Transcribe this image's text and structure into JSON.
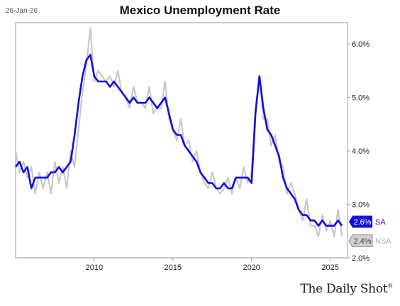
{
  "header": {
    "date": "26-Jan-26"
  },
  "brand": {
    "name": "The Daily Shot",
    "mark": "®"
  },
  "chart_data": {
    "type": "line",
    "title": "Mexico Unemployment Rate",
    "xlabel": "",
    "ylabel": "",
    "xlim": [
      2005.0,
      2026.1
    ],
    "ylim": [
      2.0,
      6.4
    ],
    "x_ticks": [
      {
        "value": 2010,
        "label": "2010"
      },
      {
        "value": 2015,
        "label": "2015"
      },
      {
        "value": 2020,
        "label": "2020"
      },
      {
        "value": 2025,
        "label": "2025"
      }
    ],
    "y_ticks": [
      {
        "value": 2.0,
        "label": "2.0%"
      },
      {
        "value": 3.0,
        "label": "3.0%"
      },
      {
        "value": 4.0,
        "label": "4.0%"
      },
      {
        "value": 5.0,
        "label": "5.0%"
      },
      {
        "value": 6.0,
        "label": "6.0%"
      }
    ],
    "grid": false,
    "series": [
      {
        "name": "NSA",
        "color": "#c8c8c8",
        "end_label": "2.4%",
        "points": [
          [
            2005.0,
            4.0
          ],
          [
            2005.25,
            3.6
          ],
          [
            2005.5,
            3.8
          ],
          [
            2005.75,
            3.5
          ],
          [
            2006.0,
            3.7
          ],
          [
            2006.25,
            3.2
          ],
          [
            2006.5,
            3.6
          ],
          [
            2006.75,
            3.3
          ],
          [
            2007.0,
            3.6
          ],
          [
            2007.25,
            3.2
          ],
          [
            2007.5,
            3.8
          ],
          [
            2007.75,
            3.4
          ],
          [
            2008.0,
            3.7
          ],
          [
            2008.25,
            3.3
          ],
          [
            2008.5,
            4.0
          ],
          [
            2008.75,
            3.7
          ],
          [
            2009.0,
            4.4
          ],
          [
            2009.25,
            5.1
          ],
          [
            2009.5,
            5.6
          ],
          [
            2009.75,
            6.3
          ],
          [
            2010.0,
            5.3
          ],
          [
            2010.25,
            5.5
          ],
          [
            2010.5,
            5.4
          ],
          [
            2010.75,
            5.3
          ],
          [
            2011.0,
            5.4
          ],
          [
            2011.25,
            5.2
          ],
          [
            2011.5,
            5.5
          ],
          [
            2011.75,
            5.1
          ],
          [
            2012.0,
            5.0
          ],
          [
            2012.25,
            4.8
          ],
          [
            2012.5,
            5.2
          ],
          [
            2012.75,
            4.9
          ],
          [
            2013.0,
            4.9
          ],
          [
            2013.25,
            4.8
          ],
          [
            2013.5,
            5.2
          ],
          [
            2013.75,
            4.7
          ],
          [
            2014.0,
            4.8
          ],
          [
            2014.25,
            4.8
          ],
          [
            2014.5,
            5.3
          ],
          [
            2014.75,
            4.6
          ],
          [
            2015.0,
            4.4
          ],
          [
            2015.25,
            4.2
          ],
          [
            2015.5,
            4.6
          ],
          [
            2015.75,
            4.1
          ],
          [
            2016.0,
            4.2
          ],
          [
            2016.25,
            3.8
          ],
          [
            2016.5,
            4.0
          ],
          [
            2016.75,
            3.6
          ],
          [
            2017.0,
            3.4
          ],
          [
            2017.25,
            3.3
          ],
          [
            2017.5,
            3.6
          ],
          [
            2017.75,
            3.3
          ],
          [
            2018.0,
            3.2
          ],
          [
            2018.25,
            3.3
          ],
          [
            2018.5,
            3.5
          ],
          [
            2018.75,
            3.2
          ],
          [
            2019.0,
            3.5
          ],
          [
            2019.25,
            3.3
          ],
          [
            2019.5,
            3.7
          ],
          [
            2019.75,
            3.4
          ],
          [
            2020.0,
            3.6
          ],
          [
            2020.25,
            4.8
          ],
          [
            2020.5,
            5.4
          ],
          [
            2020.75,
            4.6
          ],
          [
            2021.0,
            4.6
          ],
          [
            2021.25,
            4.1
          ],
          [
            2021.5,
            4.3
          ],
          [
            2021.75,
            3.8
          ],
          [
            2022.0,
            3.7
          ],
          [
            2022.25,
            3.2
          ],
          [
            2022.5,
            3.4
          ],
          [
            2022.75,
            3.2
          ],
          [
            2023.0,
            2.9
          ],
          [
            2023.25,
            2.7
          ],
          [
            2023.5,
            3.1
          ],
          [
            2023.75,
            2.6
          ],
          [
            2024.0,
            2.6
          ],
          [
            2024.25,
            2.4
          ],
          [
            2024.5,
            2.8
          ],
          [
            2024.75,
            2.5
          ],
          [
            2025.0,
            2.7
          ],
          [
            2025.25,
            2.4
          ],
          [
            2025.5,
            2.9
          ],
          [
            2025.75,
            2.4
          ]
        ]
      },
      {
        "name": "SA",
        "color": "#1010dd",
        "end_label": "2.6%",
        "points": [
          [
            2005.0,
            3.7
          ],
          [
            2005.25,
            3.8
          ],
          [
            2005.5,
            3.6
          ],
          [
            2005.75,
            3.7
          ],
          [
            2006.0,
            3.3
          ],
          [
            2006.25,
            3.5
          ],
          [
            2006.5,
            3.5
          ],
          [
            2006.75,
            3.5
          ],
          [
            2007.0,
            3.5
          ],
          [
            2007.25,
            3.6
          ],
          [
            2007.5,
            3.6
          ],
          [
            2007.75,
            3.7
          ],
          [
            2008.0,
            3.6
          ],
          [
            2008.25,
            3.7
          ],
          [
            2008.5,
            3.8
          ],
          [
            2008.75,
            4.3
          ],
          [
            2009.0,
            4.9
          ],
          [
            2009.25,
            5.4
          ],
          [
            2009.5,
            5.7
          ],
          [
            2009.75,
            5.8
          ],
          [
            2010.0,
            5.4
          ],
          [
            2010.25,
            5.3
          ],
          [
            2010.5,
            5.3
          ],
          [
            2010.75,
            5.3
          ],
          [
            2011.0,
            5.2
          ],
          [
            2011.25,
            5.3
          ],
          [
            2011.5,
            5.2
          ],
          [
            2011.75,
            5.1
          ],
          [
            2012.0,
            5.0
          ],
          [
            2012.25,
            4.9
          ],
          [
            2012.5,
            5.0
          ],
          [
            2012.75,
            4.9
          ],
          [
            2013.0,
            4.9
          ],
          [
            2013.25,
            4.9
          ],
          [
            2013.5,
            5.0
          ],
          [
            2013.75,
            4.9
          ],
          [
            2014.0,
            4.8
          ],
          [
            2014.25,
            4.9
          ],
          [
            2014.5,
            5.0
          ],
          [
            2014.75,
            4.7
          ],
          [
            2015.0,
            4.4
          ],
          [
            2015.25,
            4.3
          ],
          [
            2015.5,
            4.3
          ],
          [
            2015.75,
            4.1
          ],
          [
            2016.0,
            4.0
          ],
          [
            2016.25,
            3.9
          ],
          [
            2016.5,
            3.8
          ],
          [
            2016.75,
            3.6
          ],
          [
            2017.0,
            3.5
          ],
          [
            2017.25,
            3.4
          ],
          [
            2017.5,
            3.4
          ],
          [
            2017.75,
            3.3
          ],
          [
            2018.0,
            3.3
          ],
          [
            2018.25,
            3.4
          ],
          [
            2018.5,
            3.3
          ],
          [
            2018.75,
            3.3
          ],
          [
            2019.0,
            3.5
          ],
          [
            2019.25,
            3.5
          ],
          [
            2019.5,
            3.5
          ],
          [
            2019.75,
            3.5
          ],
          [
            2020.0,
            3.4
          ],
          [
            2020.25,
            4.7
          ],
          [
            2020.5,
            5.4
          ],
          [
            2020.75,
            4.8
          ],
          [
            2021.0,
            4.4
          ],
          [
            2021.25,
            4.3
          ],
          [
            2021.5,
            4.1
          ],
          [
            2021.75,
            3.9
          ],
          [
            2022.0,
            3.5
          ],
          [
            2022.25,
            3.3
          ],
          [
            2022.5,
            3.2
          ],
          [
            2022.75,
            3.1
          ],
          [
            2023.0,
            2.9
          ],
          [
            2023.25,
            2.8
          ],
          [
            2023.5,
            2.8
          ],
          [
            2023.75,
            2.7
          ],
          [
            2024.0,
            2.7
          ],
          [
            2024.25,
            2.6
          ],
          [
            2024.5,
            2.7
          ],
          [
            2024.75,
            2.6
          ],
          [
            2025.0,
            2.6
          ],
          [
            2025.25,
            2.6
          ],
          [
            2025.5,
            2.7
          ],
          [
            2025.75,
            2.6
          ]
        ]
      }
    ]
  }
}
